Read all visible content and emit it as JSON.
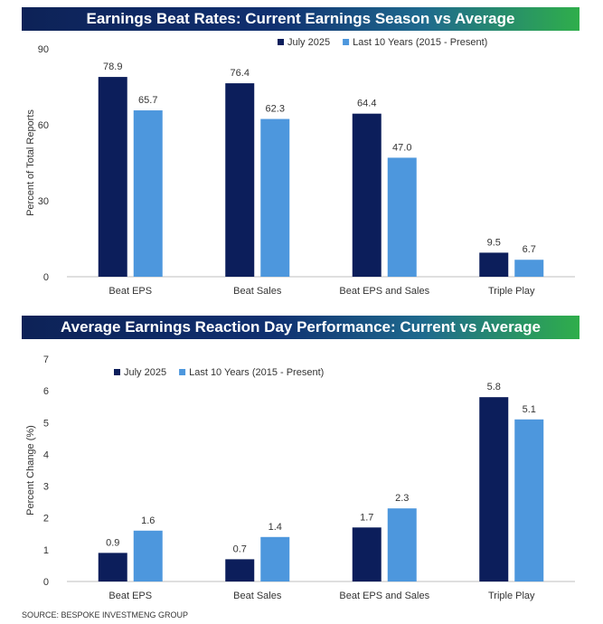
{
  "colors": {
    "current": "#0c1e5b",
    "average": "#4d97dd",
    "text": "#333333"
  },
  "chart_data": [
    {
      "type": "bar",
      "title": "Earnings Beat Rates: Current Earnings Season vs Average",
      "xlabel": "",
      "ylabel": "Percent of Total Reports",
      "ylim": [
        0,
        90
      ],
      "yticks": [
        0,
        30,
        60,
        90
      ],
      "grid": false,
      "legend": "top-right",
      "categories": [
        "Beat EPS",
        "Beat Sales",
        "Beat EPS and Sales",
        "Triple Play"
      ],
      "series": [
        {
          "name": "July 2025",
          "values": [
            78.9,
            76.4,
            64.4,
            9.5
          ],
          "labels": [
            "78.9",
            "76.4",
            "64.4",
            "9.5"
          ]
        },
        {
          "name": "Last 10 Years (2015 - Present)",
          "values": [
            65.7,
            62.3,
            47.0,
            6.7
          ],
          "labels": [
            "65.7",
            "62.3",
            "47.0",
            "6.7"
          ]
        }
      ]
    },
    {
      "type": "bar",
      "title": "Average Earnings Reaction Day Performance: Current vs Average",
      "xlabel": "",
      "ylabel": "Percent Change (%)",
      "ylim": [
        0,
        7
      ],
      "yticks": [
        0,
        1,
        2,
        3,
        4,
        5,
        6,
        7
      ],
      "grid": false,
      "legend": "top-left",
      "categories": [
        "Beat EPS",
        "Beat Sales",
        "Beat EPS and Sales",
        "Triple Play"
      ],
      "series": [
        {
          "name": "July 2025",
          "values": [
            0.9,
            0.7,
            1.7,
            5.8
          ],
          "labels": [
            "0.9",
            "0.7",
            "1.7",
            "5.8"
          ]
        },
        {
          "name": "Last 10 Years (2015 - Present)",
          "values": [
            1.6,
            1.4,
            2.3,
            5.1
          ],
          "labels": [
            "1.6",
            "1.4",
            "2.3",
            "5.1"
          ]
        }
      ]
    }
  ],
  "footer": {
    "source": "SOURCE: BESPOKE INVESTMENG GROUP"
  }
}
